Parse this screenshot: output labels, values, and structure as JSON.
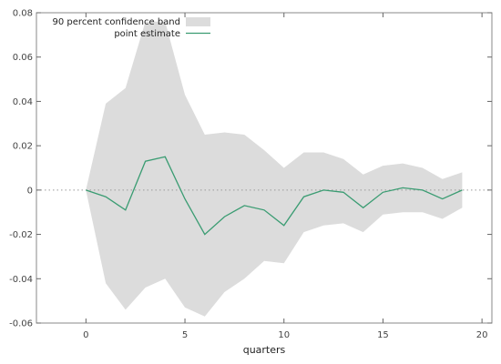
{
  "chart_data": {
    "type": "area",
    "xlabel": "quarters",
    "ylabel": "",
    "xlim": [
      -2.5,
      20.5
    ],
    "ylim": [
      -0.06,
      0.08
    ],
    "x_ticks": [
      0,
      5,
      10,
      15,
      20
    ],
    "x_tick_labels": [
      "0",
      "5",
      "10",
      "15",
      "20"
    ],
    "y_ticks": [
      -0.06,
      -0.04,
      -0.02,
      0,
      0.02,
      0.04,
      0.06,
      0.08
    ],
    "y_tick_labels": [
      "-0.06",
      "-0.04",
      "-0.02",
      "0",
      "0.02",
      "0.04",
      "0.06",
      "0.08"
    ],
    "zero_line": true,
    "grid": false,
    "legend_position": "top-left",
    "x": [
      0,
      1,
      2,
      3,
      4,
      5,
      6,
      7,
      8,
      9,
      10,
      11,
      12,
      13,
      14,
      15,
      16,
      17,
      18,
      19
    ],
    "series": [
      {
        "name": "90 percent confidence band",
        "kind": "band",
        "color": "#dcdcdc",
        "upper": [
          0.0,
          0.039,
          0.046,
          0.076,
          0.076,
          0.043,
          0.025,
          0.026,
          0.025,
          0.018,
          0.01,
          0.017,
          0.017,
          0.014,
          0.007,
          0.011,
          0.012,
          0.01,
          0.005,
          0.008
        ],
        "lower": [
          0.0,
          -0.042,
          -0.054,
          -0.044,
          -0.04,
          -0.053,
          -0.057,
          -0.046,
          -0.04,
          -0.032,
          -0.033,
          -0.019,
          -0.016,
          -0.015,
          -0.019,
          -0.011,
          -0.01,
          -0.01,
          -0.013,
          -0.008
        ]
      },
      {
        "name": "point estimate",
        "kind": "line",
        "color": "#3a9c72",
        "values": [
          0.0,
          -0.003,
          -0.009,
          0.013,
          0.015,
          -0.004,
          -0.02,
          -0.012,
          -0.007,
          -0.009,
          -0.016,
          -0.003,
          0.0,
          -0.001,
          -0.008,
          -0.001,
          0.001,
          0.0,
          -0.004,
          0.0
        ]
      }
    ]
  }
}
